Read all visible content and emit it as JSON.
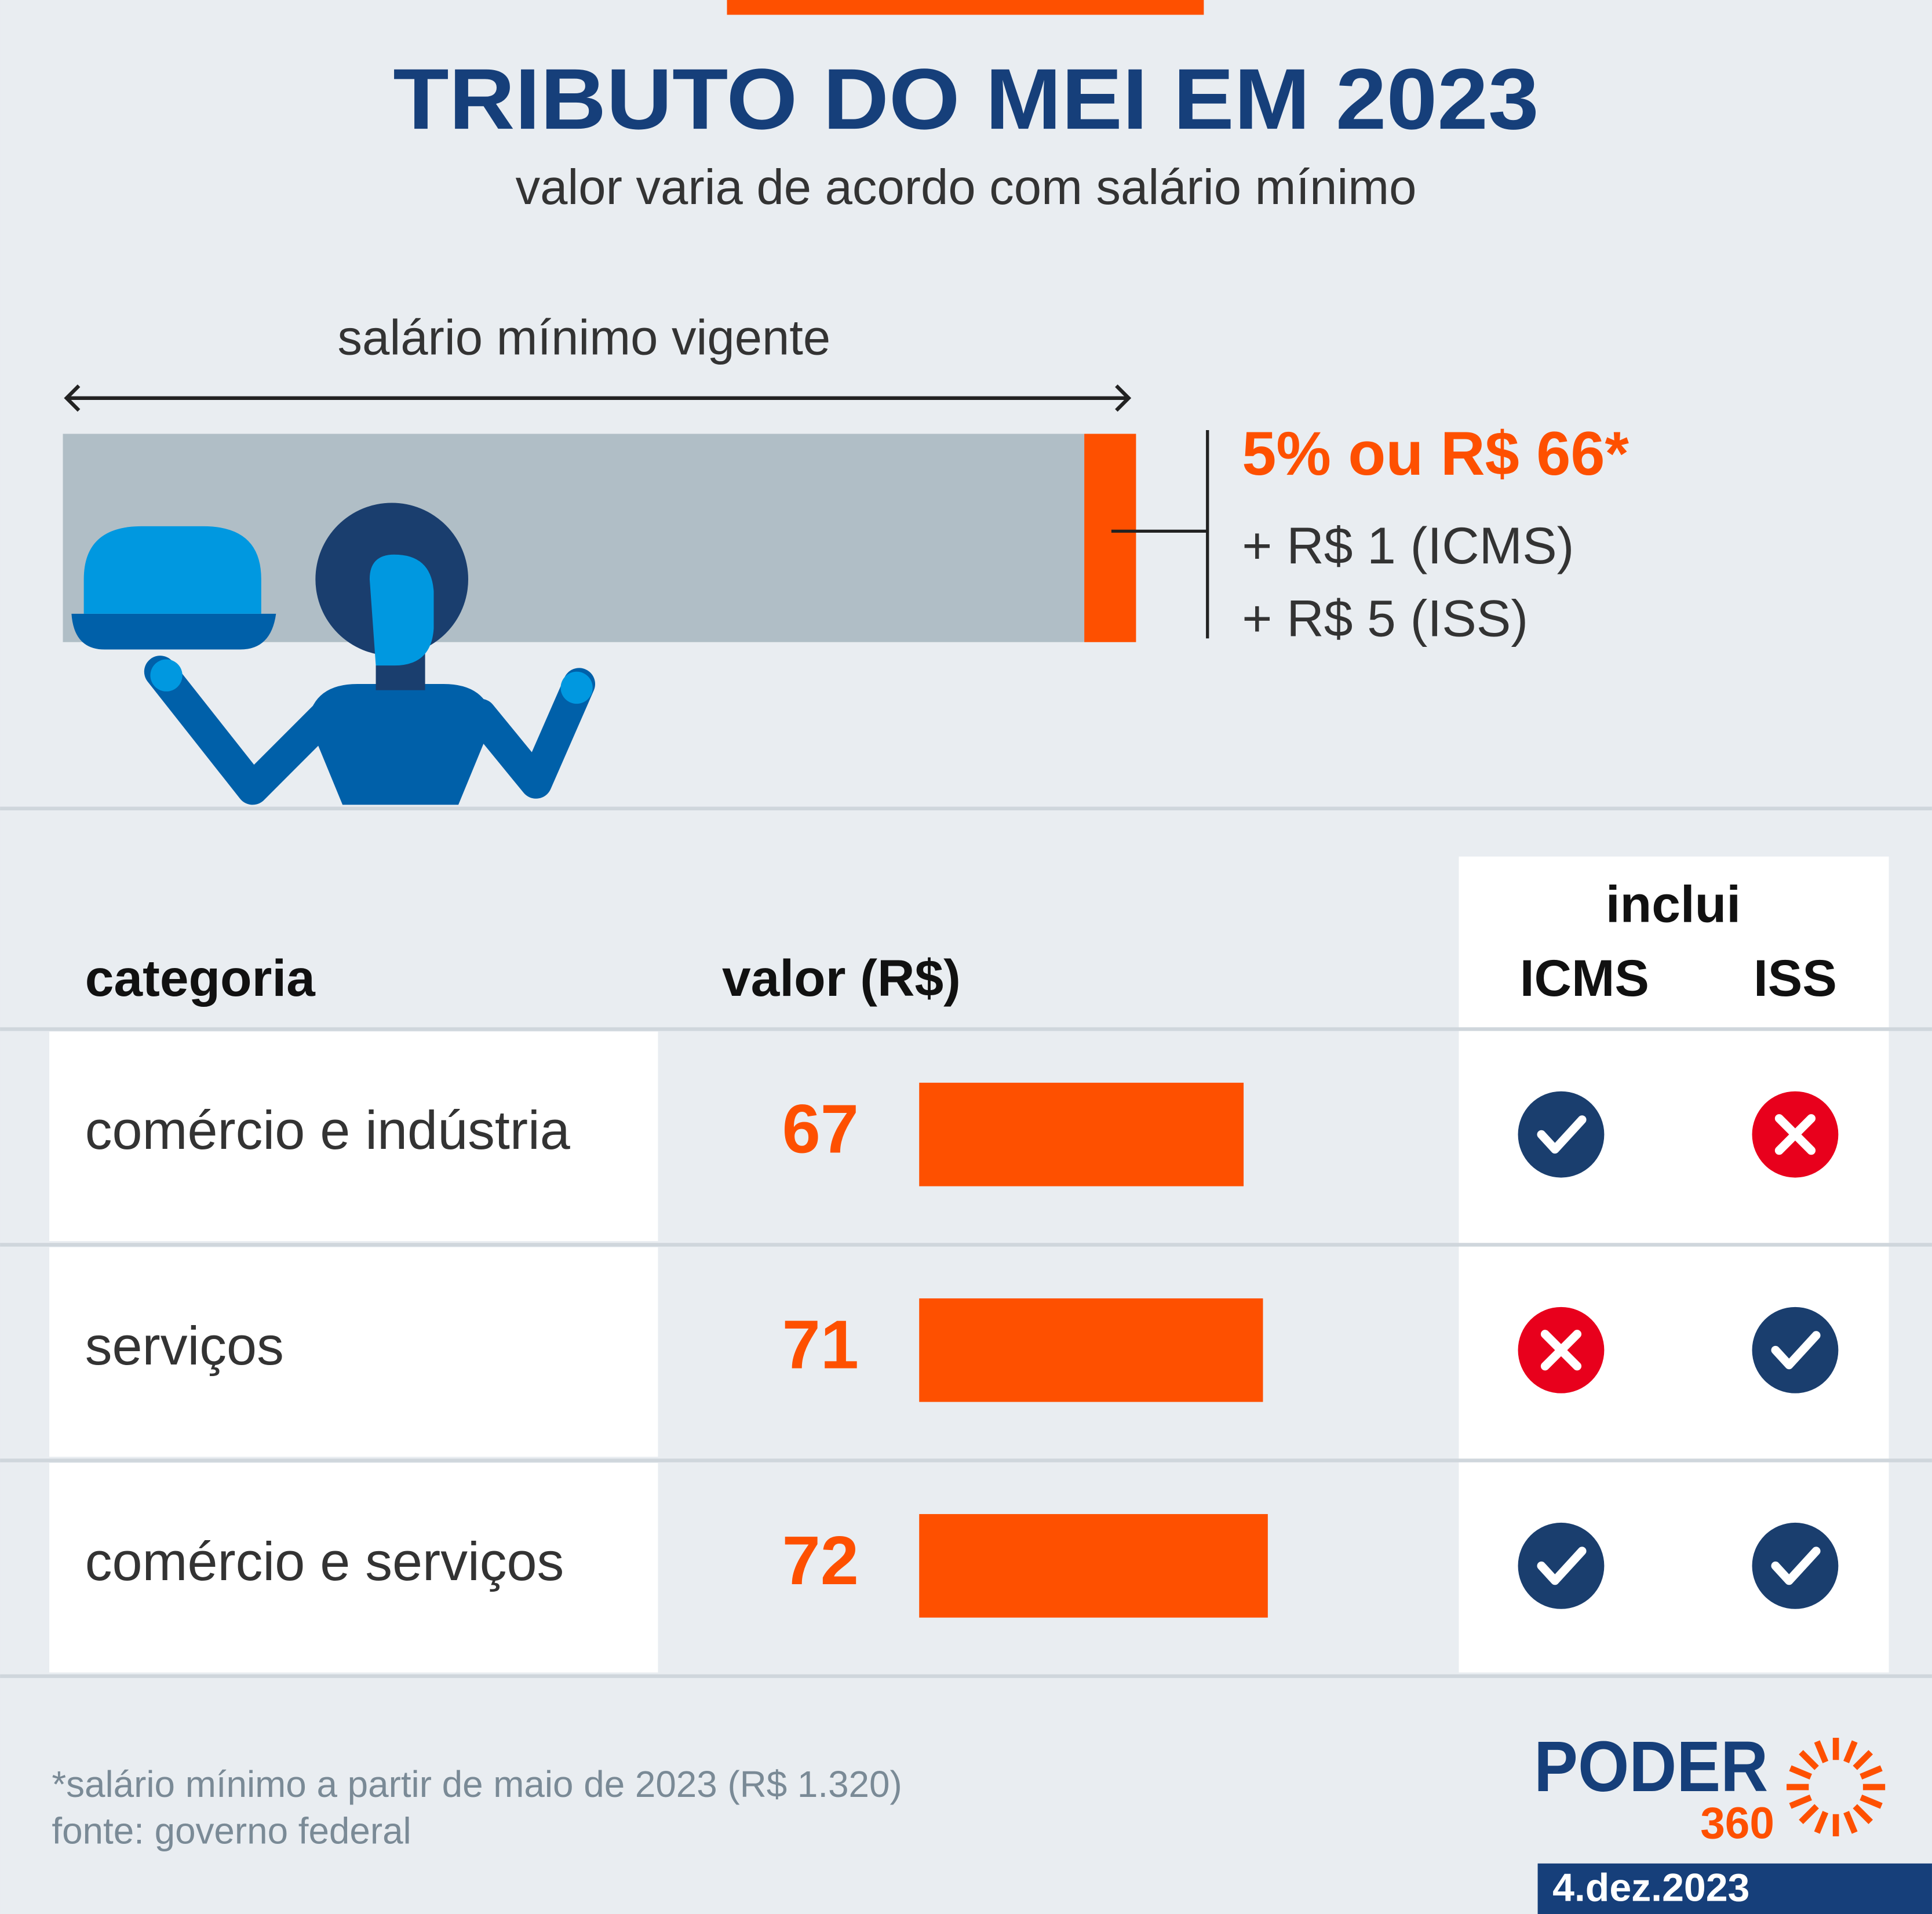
{
  "header": {
    "title": "TRIBUTO DO MEI EM 2023",
    "subtitle": "valor varia de acordo com salário mínimo"
  },
  "illustration": {
    "span_label": "salário mínimo vigente",
    "main": "5% ou R$ 66*",
    "extra": [
      "+ R$ 1 (ICMS)",
      "+ R$ 5 (ISS)"
    ]
  },
  "chart_data": {
    "type": "bar",
    "headers": {
      "category": "categoria",
      "value": "valor (R$)",
      "includes": "inclui",
      "icms": "ICMS",
      "iss": "ISS"
    },
    "categories": [
      "comércio e indústria",
      "serviços",
      "comércio e serviços"
    ],
    "values": [
      67,
      71,
      72
    ],
    "icms": [
      true,
      false,
      true
    ],
    "iss": [
      false,
      true,
      true
    ],
    "color": "#fe5000"
  },
  "footer": {
    "note": "*salário mínimo a partir de maio de 2023 (R$ 1.320)",
    "source": "fonte: governo federal",
    "logo": "PODER",
    "logo_sub": "360",
    "date": "4.dez.2023"
  }
}
